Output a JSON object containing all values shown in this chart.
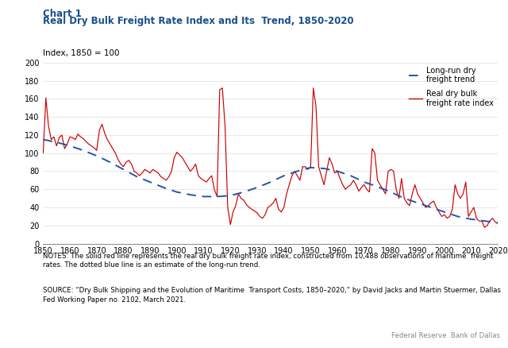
{
  "title_line1": "Chart 1",
  "title_line2": "Real Dry Bulk Freight Rate Index and Its  Trend, 1850-2020",
  "ylabel": "Index, 1850 = 100",
  "ylim": [
    0,
    200
  ],
  "xlim": [
    1850,
    2020
  ],
  "yticks": [
    0,
    20,
    40,
    60,
    80,
    100,
    120,
    140,
    160,
    180,
    200
  ],
  "xticks": [
    1850,
    1860,
    1870,
    1880,
    1890,
    1900,
    1910,
    1920,
    1930,
    1940,
    1950,
    1960,
    1970,
    1980,
    1990,
    2000,
    2010,
    2020
  ],
  "legend_trend": "Long-run dry\nfreight trend",
  "legend_index": "Real dry bulk\nfreight rate index",
  "line_color": "#cc0000",
  "trend_color": "#2255aa",
  "title_color": "#1a4f8a",
  "notes": "NOTES: The solid red line represents the real dry bulk freight rate index, constructed from 10,488 observations of maritime  freight\nrates. The dotted blue line is an estimate of the long-run trend.",
  "source": "SOURCE: “Dry Bulk Shipping and the Evolution of Maritime  Transport Costs, 1850–2020,” by David Jacks and Martin Stuermer, Dallas\nFed Working Paper no. 2102, March 2021.",
  "footer": "Federal Reserve  Bank of Dallas",
  "freight_years": [
    1850,
    1851,
    1852,
    1853,
    1854,
    1855,
    1856,
    1857,
    1858,
    1859,
    1860,
    1861,
    1862,
    1863,
    1864,
    1865,
    1866,
    1867,
    1868,
    1869,
    1870,
    1871,
    1872,
    1873,
    1874,
    1875,
    1876,
    1877,
    1878,
    1879,
    1880,
    1881,
    1882,
    1883,
    1884,
    1885,
    1886,
    1887,
    1888,
    1889,
    1890,
    1891,
    1892,
    1893,
    1894,
    1895,
    1896,
    1897,
    1898,
    1899,
    1900,
    1901,
    1902,
    1903,
    1904,
    1905,
    1906,
    1907,
    1908,
    1909,
    1910,
    1911,
    1912,
    1913,
    1914,
    1915,
    1916,
    1917,
    1918,
    1919,
    1920,
    1921,
    1922,
    1923,
    1924,
    1925,
    1926,
    1927,
    1928,
    1929,
    1930,
    1931,
    1932,
    1933,
    1934,
    1935,
    1936,
    1937,
    1938,
    1939,
    1940,
    1941,
    1942,
    1943,
    1944,
    1945,
    1946,
    1947,
    1948,
    1949,
    1950,
    1951,
    1952,
    1953,
    1954,
    1955,
    1956,
    1957,
    1958,
    1959,
    1960,
    1961,
    1962,
    1963,
    1964,
    1965,
    1966,
    1967,
    1968,
    1969,
    1970,
    1971,
    1972,
    1973,
    1974,
    1975,
    1976,
    1977,
    1978,
    1979,
    1980,
    1981,
    1982,
    1983,
    1984,
    1985,
    1986,
    1987,
    1988,
    1989,
    1990,
    1991,
    1992,
    1993,
    1994,
    1995,
    1996,
    1997,
    1998,
    1999,
    2000,
    2001,
    2002,
    2003,
    2004,
    2005,
    2006,
    2007,
    2008,
    2009,
    2010,
    2011,
    2012,
    2013,
    2014,
    2015,
    2016,
    2017,
    2018,
    2019,
    2020
  ],
  "freight_values": [
    100,
    161,
    130,
    115,
    118,
    108,
    117,
    120,
    105,
    110,
    118,
    117,
    115,
    121,
    118,
    116,
    113,
    110,
    108,
    106,
    103,
    125,
    132,
    122,
    115,
    110,
    105,
    100,
    93,
    88,
    85,
    90,
    92,
    88,
    80,
    78,
    75,
    78,
    82,
    80,
    78,
    82,
    80,
    78,
    74,
    72,
    70,
    74,
    80,
    95,
    101,
    98,
    95,
    90,
    85,
    80,
    83,
    88,
    75,
    72,
    70,
    68,
    72,
    75,
    60,
    52,
    170,
    172,
    130,
    40,
    21,
    35,
    42,
    55,
    50,
    48,
    43,
    40,
    38,
    36,
    34,
    30,
    28,
    32,
    40,
    42,
    45,
    50,
    38,
    35,
    40,
    55,
    65,
    75,
    80,
    75,
    70,
    85,
    85,
    82,
    85,
    172,
    152,
    85,
    75,
    65,
    80,
    95,
    88,
    78,
    80,
    72,
    65,
    60,
    63,
    65,
    70,
    65,
    58,
    62,
    65,
    60,
    57,
    105,
    100,
    70,
    65,
    60,
    55,
    80,
    82,
    80,
    60,
    50,
    72,
    50,
    45,
    42,
    55,
    65,
    55,
    50,
    45,
    40,
    42,
    45,
    47,
    40,
    35,
    30,
    32,
    28,
    30,
    38,
    65,
    55,
    50,
    55,
    68,
    30,
    35,
    40,
    28,
    25,
    25,
    18,
    20,
    25,
    28,
    24,
    22
  ],
  "trend_years": [
    1850,
    1855,
    1860,
    1865,
    1870,
    1875,
    1880,
    1885,
    1890,
    1895,
    1900,
    1905,
    1910,
    1915,
    1920,
    1925,
    1930,
    1935,
    1940,
    1945,
    1950,
    1955,
    1960,
    1965,
    1970,
    1975,
    1980,
    1985,
    1990,
    1995,
    2000,
    2005,
    2010,
    2015,
    2020
  ],
  "trend_values": [
    115,
    112,
    108,
    103,
    97,
    90,
    82,
    74,
    68,
    62,
    57,
    54,
    52,
    52,
    53,
    57,
    62,
    68,
    75,
    80,
    84,
    83,
    80,
    75,
    68,
    63,
    57,
    50,
    45,
    40,
    35,
    30,
    27,
    25,
    23
  ]
}
